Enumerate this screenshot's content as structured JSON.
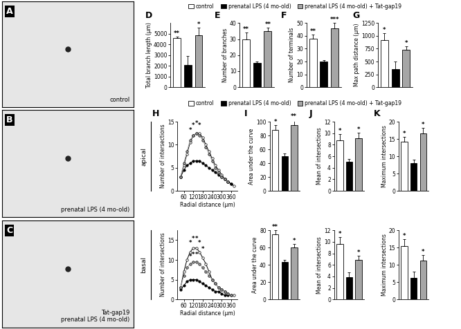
{
  "groups": {
    "names": [
      "control",
      "prenatal LPS (4 mo-old)",
      "prenatal LPS (4 mo-old) + Tat-gap19"
    ],
    "colors": [
      "#ffffff",
      "#000000",
      "#a6a6a6"
    ]
  },
  "images": [
    {
      "panel": "A",
      "label": "control"
    },
    {
      "panel": "B",
      "label": "prenatal LPS (4 mo-old)"
    },
    {
      "panel": "C",
      "label": "Tat-gap19\nprenatal LPS (4 mo-old)"
    }
  ],
  "chart_data": [
    {
      "panel": "D",
      "type": "bar",
      "ylabel": "Total branch length (μm)",
      "categories": [
        "control",
        "prenatal LPS (4 mo-old)",
        "prenatal LPS (4 mo-old) + Tat-gap19"
      ],
      "colors": [
        "#ffffff",
        "#000000",
        "#a6a6a6"
      ],
      "values": [
        4600,
        2100,
        4850
      ],
      "errors": [
        150,
        800,
        700
      ],
      "significance": [
        "**",
        null,
        "*"
      ],
      "ylim": [
        0,
        6000
      ],
      "yticks": [
        0,
        1000,
        2000,
        3000,
        4000,
        5000
      ],
      "tick_labels": "y"
    },
    {
      "panel": "E",
      "type": "bar",
      "ylabel": "Number of branches",
      "categories": [
        "control",
        "prenatal LPS (4 mo-old)",
        "prenatal LPS (4 mo-old) + Tat-gap19"
      ],
      "colors": [
        "#ffffff",
        "#000000",
        "#a6a6a6"
      ],
      "values": [
        30,
        15,
        35
      ],
      "errors": [
        4,
        1,
        2
      ],
      "significance": [
        "**",
        null,
        "**"
      ],
      "ylim": [
        0,
        40
      ],
      "yticks": [
        0,
        10,
        20,
        30,
        40
      ],
      "tick_labels": "y"
    },
    {
      "panel": "F",
      "type": "bar",
      "ylabel": "Number of terminals",
      "categories": [
        "control",
        "prenatal LPS (4 mo-old)",
        "prenatal LPS (4 mo-old) + Tat-gap19"
      ],
      "colors": [
        "#ffffff",
        "#000000",
        "#a6a6a6"
      ],
      "values": [
        38,
        20,
        46
      ],
      "errors": [
        3,
        1,
        4
      ],
      "significance": [
        "**",
        null,
        "***"
      ],
      "ylim": [
        0,
        50
      ],
      "yticks": [
        0,
        10,
        20,
        30,
        40,
        50
      ],
      "tick_labels": "y"
    },
    {
      "panel": "G",
      "type": "bar",
      "ylabel": "Max path distance (μm)",
      "categories": [
        "control",
        "prenatal LPS (4 mo-old)",
        "prenatal LPS (4 mo-old) + Tat-gap19"
      ],
      "colors": [
        "#ffffff",
        "#000000",
        "#a6a6a6"
      ],
      "values": [
        920,
        350,
        730
      ],
      "errors": [
        130,
        150,
        60
      ],
      "significance": [
        "*",
        null,
        "*"
      ],
      "ylim": [
        0,
        1250
      ],
      "yticks": [
        0,
        250,
        500,
        750,
        1000,
        1250
      ],
      "tick_labels": "y"
    },
    {
      "panel": "H",
      "row_label": "apical",
      "type": "line",
      "xlabel": "Radial distance (μm)",
      "ylabel": "Number of intersections",
      "x": [
        40,
        60,
        80,
        100,
        120,
        140,
        160,
        180,
        200,
        220,
        240,
        260,
        280,
        300,
        320,
        340,
        360,
        380
      ],
      "series": [
        {
          "name": "control",
          "color": "#ffffff",
          "marker": "o",
          "values": [
            3,
            5.5,
            8,
            10.5,
            12,
            12.5,
            12.5,
            11.5,
            10,
            8.5,
            7,
            5.5,
            4.5,
            3.5,
            2.5,
            2,
            1.5,
            1
          ]
        },
        {
          "name": "prenatal LPS (4 mo-old)",
          "color": "#000000",
          "marker": "o",
          "values": [
            3,
            4.5,
            5.5,
            6,
            6.5,
            6.5,
            6.5,
            6,
            5.5,
            5,
            4.5,
            4,
            3.5,
            3,
            2.5,
            2,
            1.5,
            null
          ]
        },
        {
          "name": "prenatal LPS (4 mo-old) + Tat-gap19",
          "color": "#a6a6a6",
          "marker": "o",
          "values": [
            3,
            6,
            8.5,
            11,
            12,
            12.5,
            12,
            11,
            9.5,
            8,
            6.5,
            5,
            4,
            3,
            2.5,
            2,
            null,
            null
          ]
        }
      ],
      "annotations": [
        {
          "x": 100,
          "y": 12.5,
          "text": "*"
        },
        {
          "x": 120,
          "y": 13.5,
          "text": "*"
        },
        {
          "x": 140,
          "y": 14,
          "text": "*"
        },
        {
          "x": 160,
          "y": 13.5,
          "text": "*"
        }
      ],
      "xlim": [
        20,
        400
      ],
      "xticks": [
        60,
        120,
        180,
        240,
        300,
        360
      ],
      "ylim": [
        0,
        15
      ],
      "yticks": [
        0,
        5,
        10,
        15
      ]
    },
    {
      "row_label": "basal",
      "type": "line",
      "xlabel": "Radial distance (μm)",
      "ylabel": "Number of intersections",
      "x": [
        40,
        60,
        80,
        100,
        120,
        140,
        160,
        180,
        200,
        220,
        240,
        260,
        280,
        300,
        320,
        340,
        360,
        380
      ],
      "series": [
        {
          "name": "control",
          "color": "#ffffff",
          "marker": "o",
          "values": [
            3,
            7,
            10,
            12,
            13,
            13,
            12,
            10.5,
            9,
            7,
            5,
            4,
            3,
            2.5,
            2,
            1.5,
            1,
            1
          ]
        },
        {
          "name": "prenatal LPS (4 mo-old)",
          "color": "#000000",
          "marker": "o",
          "values": [
            2.5,
            3.5,
            4.5,
            5,
            5,
            5,
            4.5,
            4,
            3.5,
            3,
            2.5,
            2,
            2,
            1.5,
            1,
            1,
            null,
            null
          ]
        },
        {
          "name": "prenatal LPS (4 mo-old) + Tat-gap19",
          "color": "#a6a6a6",
          "marker": "o",
          "values": [
            3,
            6,
            8,
            9,
            9.5,
            9.5,
            9,
            8,
            7,
            6,
            5,
            4,
            3,
            2.5,
            2,
            1.5,
            1,
            null
          ]
        }
      ],
      "annotations": [
        {
          "x": 100,
          "y": 13.5,
          "text": "*"
        },
        {
          "x": 120,
          "y": 14.5,
          "text": "*"
        },
        {
          "x": 140,
          "y": 14.5,
          "text": "*"
        },
        {
          "x": 160,
          "y": 13.5,
          "text": "*"
        },
        {
          "x": 180,
          "y": 12,
          "text": "*"
        },
        {
          "x": 100,
          "y": 10,
          "text": "*"
        },
        {
          "x": 120,
          "y": 10.5,
          "text": "*"
        },
        {
          "x": 140,
          "y": 10.5,
          "text": "*"
        }
      ],
      "xlim": [
        20,
        400
      ],
      "xticks": [
        60,
        120,
        180,
        240,
        300,
        360
      ],
      "ylim": [
        0,
        17.5
      ],
      "yticks": [
        0,
        5,
        10,
        15
      ]
    },
    {
      "panel": "I",
      "type": "bar",
      "ylabel": "Area under the curve",
      "categories": [
        "control",
        "prenatal LPS (4 mo-old)",
        "prenatal LPS (4 mo-old) + Tat-gap19"
      ],
      "colors": [
        "#ffffff",
        "#000000",
        "#a6a6a6"
      ],
      "values": [
        88,
        50,
        95
      ],
      "errors": [
        7,
        4,
        8
      ],
      "significance": [
        "*",
        null,
        "**"
      ],
      "ylim": [
        0,
        100
      ],
      "yticks": [
        0,
        20,
        40,
        60,
        80,
        100
      ],
      "tick_labels": "y"
    },
    {
      "type": "bar",
      "ylabel": "Area under the curve",
      "categories": [
        "control",
        "prenatal LPS (4 mo-old)",
        "prenatal LPS (4 mo-old) + Tat-gap19"
      ],
      "colors": [
        "#ffffff",
        "#000000",
        "#a6a6a6"
      ],
      "values": [
        75,
        43,
        60
      ],
      "errors": [
        5,
        3,
        4
      ],
      "significance": [
        "**",
        null,
        "*"
      ],
      "ylim": [
        0,
        80
      ],
      "yticks": [
        0,
        20,
        40,
        60,
        80
      ],
      "tick_labels": "y"
    },
    {
      "panel": "J",
      "type": "bar",
      "ylabel": "Mean of intersections",
      "categories": [
        "control",
        "prenatal LPS (4 mo-old)",
        "prenatal LPS (4 mo-old) + Tat-gap19"
      ],
      "colors": [
        "#ffffff",
        "#000000",
        "#a6a6a6"
      ],
      "values": [
        8.8,
        5,
        9.1
      ],
      "errors": [
        1,
        0.5,
        1
      ],
      "significance": [
        "*",
        null,
        "*"
      ],
      "ylim": [
        0,
        12
      ],
      "yticks": [
        0,
        2,
        4,
        6,
        8,
        10,
        12
      ],
      "tick_labels": "y"
    },
    {
      "type": "bar",
      "ylabel": "Mean of intersections",
      "categories": [
        "control",
        "prenatal LPS (4 mo-old)",
        "prenatal LPS (4 mo-old) + Tat-gap19"
      ],
      "colors": [
        "#ffffff",
        "#000000",
        "#a6a6a6"
      ],
      "values": [
        9.6,
        3.9,
        6.9
      ],
      "errors": [
        1.2,
        0.8,
        0.7
      ],
      "significance": [
        "*",
        null,
        "*"
      ],
      "ylim": [
        0,
        12
      ],
      "yticks": [
        0,
        2,
        4,
        6,
        8,
        10,
        12
      ],
      "tick_labels": "y"
    },
    {
      "panel": "K",
      "type": "bar",
      "ylabel": "Maximum intersections",
      "categories": [
        "control",
        "prenatal LPS (4 mo-old)",
        "prenatal LPS (4 mo-old) + Tat-gap19"
      ],
      "colors": [
        "#ffffff",
        "#000000",
        "#a6a6a6"
      ],
      "values": [
        14.3,
        8,
        16.7
      ],
      "errors": [
        1.3,
        1,
        1.5
      ],
      "significance": [
        "*",
        null,
        "*"
      ],
      "ylim": [
        0,
        20
      ],
      "yticks": [
        0,
        5,
        10,
        15,
        20
      ],
      "tick_labels": "y"
    },
    {
      "type": "bar",
      "ylabel": "Maximum intersections",
      "categories": [
        "control",
        "prenatal LPS (4 mo-old)",
        "prenatal LPS (4 mo-old) + Tat-gap19"
      ],
      "colors": [
        "#ffffff",
        "#000000",
        "#a6a6a6"
      ],
      "values": [
        15.5,
        6.3,
        11.3
      ],
      "errors": [
        2,
        1.7,
        1.5
      ],
      "significance": [
        "*",
        null,
        "*"
      ],
      "ylim": [
        0,
        20
      ],
      "yticks": [
        0,
        5,
        10,
        15,
        20
      ],
      "tick_labels": "y"
    }
  ]
}
